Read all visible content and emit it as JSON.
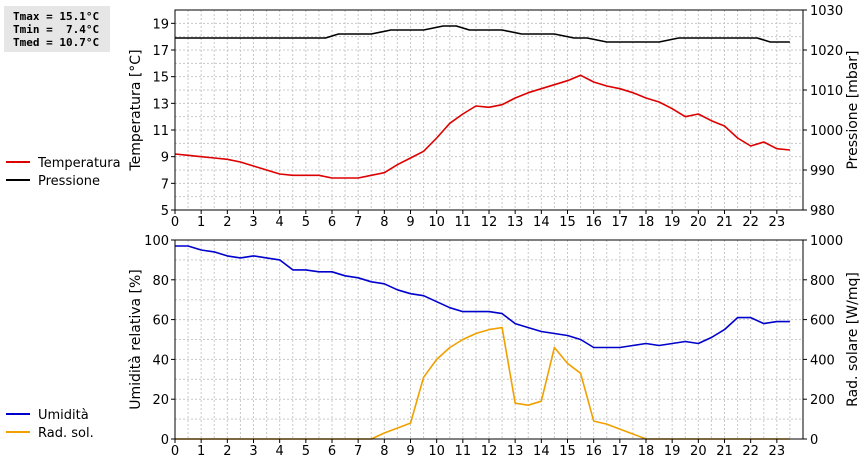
{
  "stats": {
    "tmax": "Tmax = 15.1°C",
    "tmin": "Tmin =  7.4°C",
    "tmed": "Tmed = 10.7°C"
  },
  "colors": {
    "temperature": "#dd0000",
    "pressure": "#000000",
    "humidity": "#0000cc",
    "radiation": "#f0a000",
    "grid": "#c8c8c8",
    "stats_box": "#e6e6e6"
  },
  "chart_data": [
    {
      "type": "line",
      "x_ticks": [
        "0",
        "1",
        "2",
        "3",
        "4",
        "5",
        "6",
        "7",
        "8",
        "9",
        "10",
        "11",
        "12",
        "13",
        "14",
        "15",
        "16",
        "17",
        "18",
        "19",
        "20",
        "21",
        "22",
        "23"
      ],
      "xlim": [
        0,
        24
      ],
      "ylabel_left": "Temperatura [°C]",
      "ylabel_right": "Pressione [mbar]",
      "ylim_left": [
        5,
        20
      ],
      "ylim_right": [
        980,
        1030
      ],
      "yticks_left": [
        "5",
        "7",
        "9",
        "11",
        "13",
        "15",
        "17",
        "19"
      ],
      "yticks_right": [
        "980",
        "990",
        "1000",
        "1010",
        "1020",
        "1030"
      ],
      "grid": true,
      "legend_position": "left",
      "series": [
        {
          "name": "Temperatura",
          "axis": "left",
          "color": "#dd0000",
          "x": [
            0,
            0.5,
            1,
            1.5,
            2,
            2.5,
            3,
            3.5,
            4,
            4.5,
            5,
            5.5,
            6,
            6.5,
            7,
            7.5,
            8,
            8.5,
            9,
            9.5,
            10,
            10.5,
            11,
            11.5,
            12,
            12.5,
            13,
            13.5,
            14,
            14.5,
            15,
            15.5,
            16,
            16.5,
            17,
            17.5,
            18,
            18.5,
            19,
            19.5,
            20,
            20.5,
            21,
            21.5,
            22,
            22.5,
            23,
            23.5
          ],
          "y": [
            9.2,
            9.1,
            9.0,
            8.9,
            8.8,
            8.6,
            8.3,
            8.0,
            7.7,
            7.6,
            7.6,
            7.6,
            7.4,
            7.4,
            7.4,
            7.6,
            7.8,
            8.4,
            8.9,
            9.4,
            10.4,
            11.5,
            12.2,
            12.8,
            12.7,
            12.9,
            13.4,
            13.8,
            14.1,
            14.4,
            14.7,
            15.1,
            14.6,
            14.3,
            14.1,
            13.8,
            13.4,
            13.1,
            12.6,
            12.0,
            12.2,
            11.7,
            11.3,
            10.4,
            9.8,
            10.1,
            9.6,
            9.5
          ]
        },
        {
          "name": "Pressione",
          "axis": "right",
          "color": "#000000",
          "x": [
            0,
            1,
            2,
            3,
            4,
            5,
            5.75,
            6.25,
            7.5,
            8.25,
            9.5,
            10.25,
            10.75,
            11.25,
            12.5,
            13.25,
            14.5,
            15.25,
            15.75,
            16.5,
            17.5,
            18.5,
            19.25,
            20.5,
            21.5,
            22.25,
            22.75,
            23.5
          ],
          "y": [
            1023,
            1023,
            1023,
            1023,
            1023,
            1023,
            1023,
            1024,
            1024,
            1025,
            1025,
            1026,
            1026,
            1025,
            1025,
            1024,
            1024,
            1023,
            1023,
            1022,
            1022,
            1022,
            1023,
            1023,
            1023,
            1023,
            1022,
            1022
          ]
        }
      ]
    },
    {
      "type": "line",
      "x_ticks": [
        "0",
        "1",
        "2",
        "3",
        "4",
        "5",
        "6",
        "7",
        "8",
        "9",
        "10",
        "11",
        "12",
        "13",
        "14",
        "15",
        "16",
        "17",
        "18",
        "19",
        "20",
        "21",
        "22",
        "23"
      ],
      "xlim": [
        0,
        24
      ],
      "ylabel_left": "Umidità relativa [%]",
      "ylabel_right": "Rad. solare [W/mq]",
      "ylim_left": [
        0,
        100
      ],
      "ylim_right": [
        0,
        1000
      ],
      "yticks_left": [
        "0",
        "20",
        "40",
        "60",
        "80",
        "100"
      ],
      "yticks_right": [
        "0",
        "200",
        "400",
        "600",
        "800",
        "1000"
      ],
      "grid": true,
      "legend_position": "left",
      "series": [
        {
          "name": "Umidità",
          "axis": "left",
          "color": "#0000cc",
          "x": [
            0,
            0.5,
            1,
            1.5,
            2,
            2.5,
            3,
            3.5,
            4,
            4.5,
            5,
            5.5,
            6,
            6.5,
            7,
            7.5,
            8,
            8.5,
            9,
            9.5,
            10,
            10.5,
            11,
            11.5,
            12,
            12.5,
            13,
            13.5,
            14,
            14.5,
            15,
            15.5,
            16,
            16.5,
            17,
            17.5,
            18,
            18.5,
            19,
            19.5,
            20,
            20.5,
            21,
            21.5,
            22,
            22.5,
            23,
            23.5
          ],
          "y": [
            97,
            97,
            95,
            94,
            92,
            91,
            92,
            91,
            90,
            85,
            85,
            84,
            84,
            82,
            81,
            79,
            78,
            75,
            73,
            72,
            69,
            66,
            64,
            64,
            64,
            63,
            58,
            56,
            54,
            53,
            52,
            50,
            46,
            46,
            46,
            47,
            48,
            47,
            48,
            49,
            48,
            51,
            55,
            61,
            61,
            58,
            59,
            59
          ]
        },
        {
          "name": "Rad. sol.",
          "axis": "right",
          "color": "#f0a000",
          "x": [
            0,
            7.5,
            8,
            9,
            9.5,
            10,
            10.5,
            11,
            11.5,
            12,
            12.5,
            13,
            13.5,
            14,
            14.5,
            15,
            15.5,
            16,
            16.5,
            17,
            17.5,
            18,
            23.5
          ],
          "y": [
            0,
            0,
            30,
            80,
            310,
            400,
            460,
            500,
            530,
            550,
            560,
            180,
            170,
            190,
            460,
            380,
            330,
            90,
            75,
            50,
            25,
            0,
            0
          ]
        }
      ]
    }
  ]
}
